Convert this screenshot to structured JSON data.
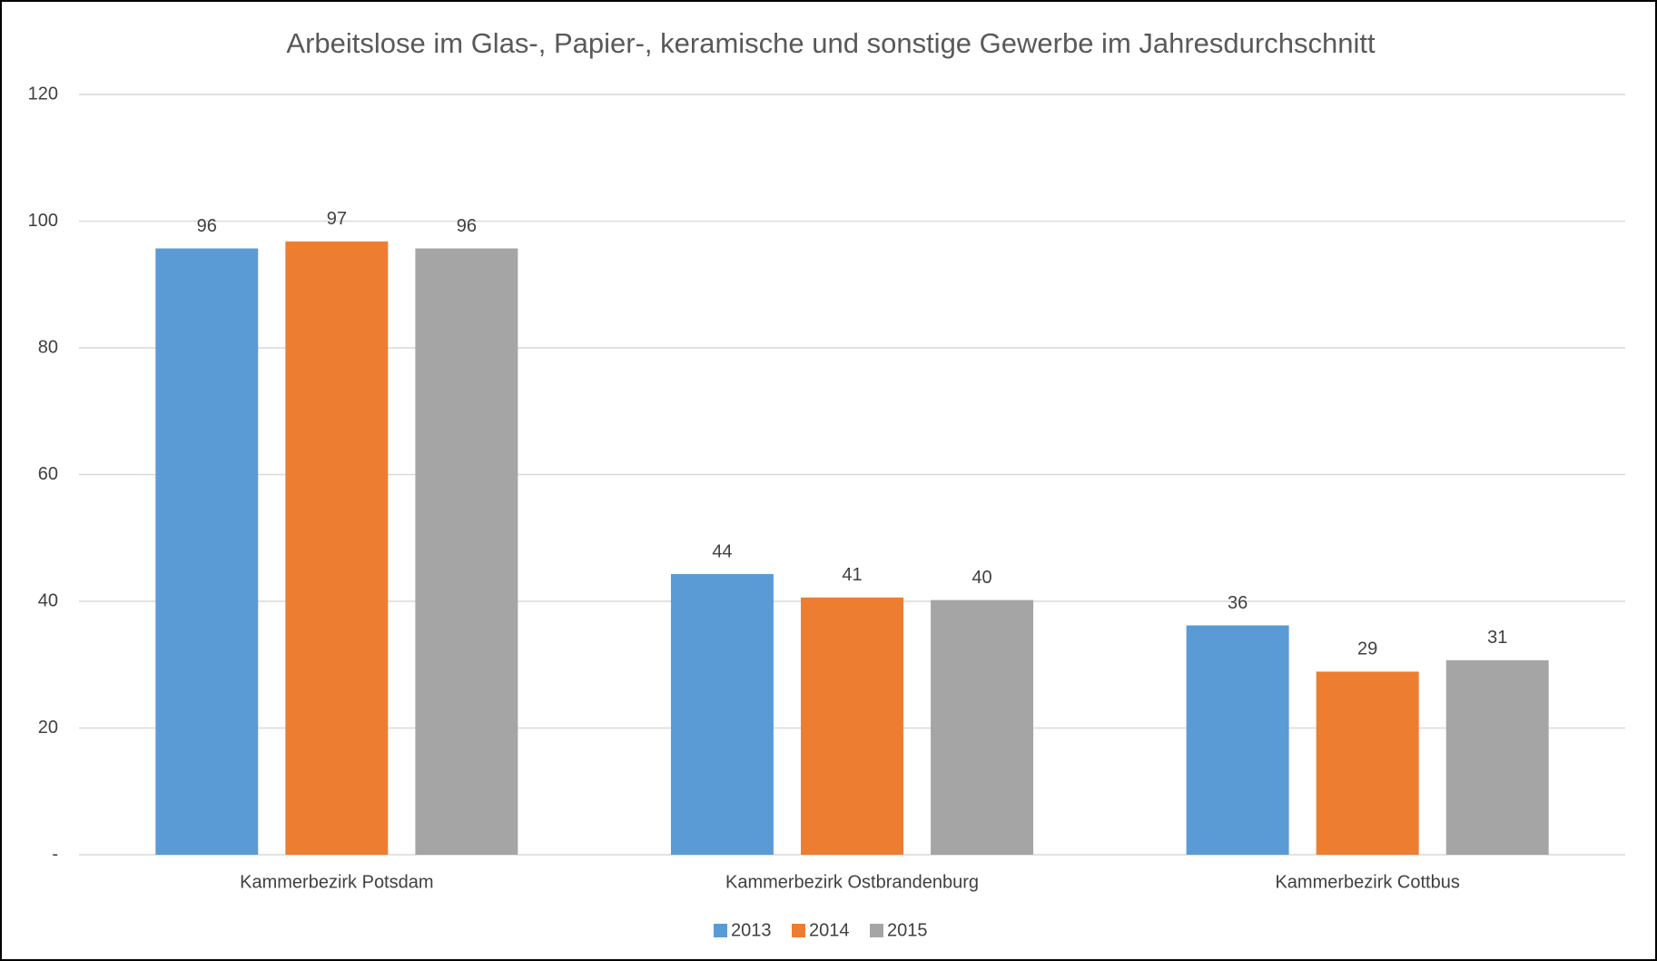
{
  "chart_data": {
    "type": "bar",
    "title": "Arbeitslose im Glas-, Papier-, keramische und sonstige Gewerbe im Jahresdurchschnitt",
    "categories": [
      "Kammerbezirk Potsdam",
      "Kammerbezirk Ostbrandenburg",
      "Kammerbezirk Cottbus"
    ],
    "series": [
      {
        "name": "2013",
        "color": "#5b9bd5",
        "values": [
          95.7,
          44.3,
          36.2
        ],
        "value_labels": [
          "96",
          "44",
          "36"
        ]
      },
      {
        "name": "2014",
        "color": "#ed7d31",
        "values": [
          96.8,
          40.6,
          28.9
        ],
        "value_labels": [
          "97",
          "41",
          "29"
        ]
      },
      {
        "name": "2015",
        "color": "#a5a5a5",
        "values": [
          95.7,
          40.2,
          30.7
        ],
        "value_labels": [
          "96",
          "40",
          "31"
        ]
      }
    ],
    "ylim": [
      0,
      120
    ],
    "yticks": [
      {
        "value": 0,
        "label": "-"
      },
      20,
      40,
      60,
      80,
      100,
      120
    ],
    "grid": true,
    "legend": "bottom"
  }
}
